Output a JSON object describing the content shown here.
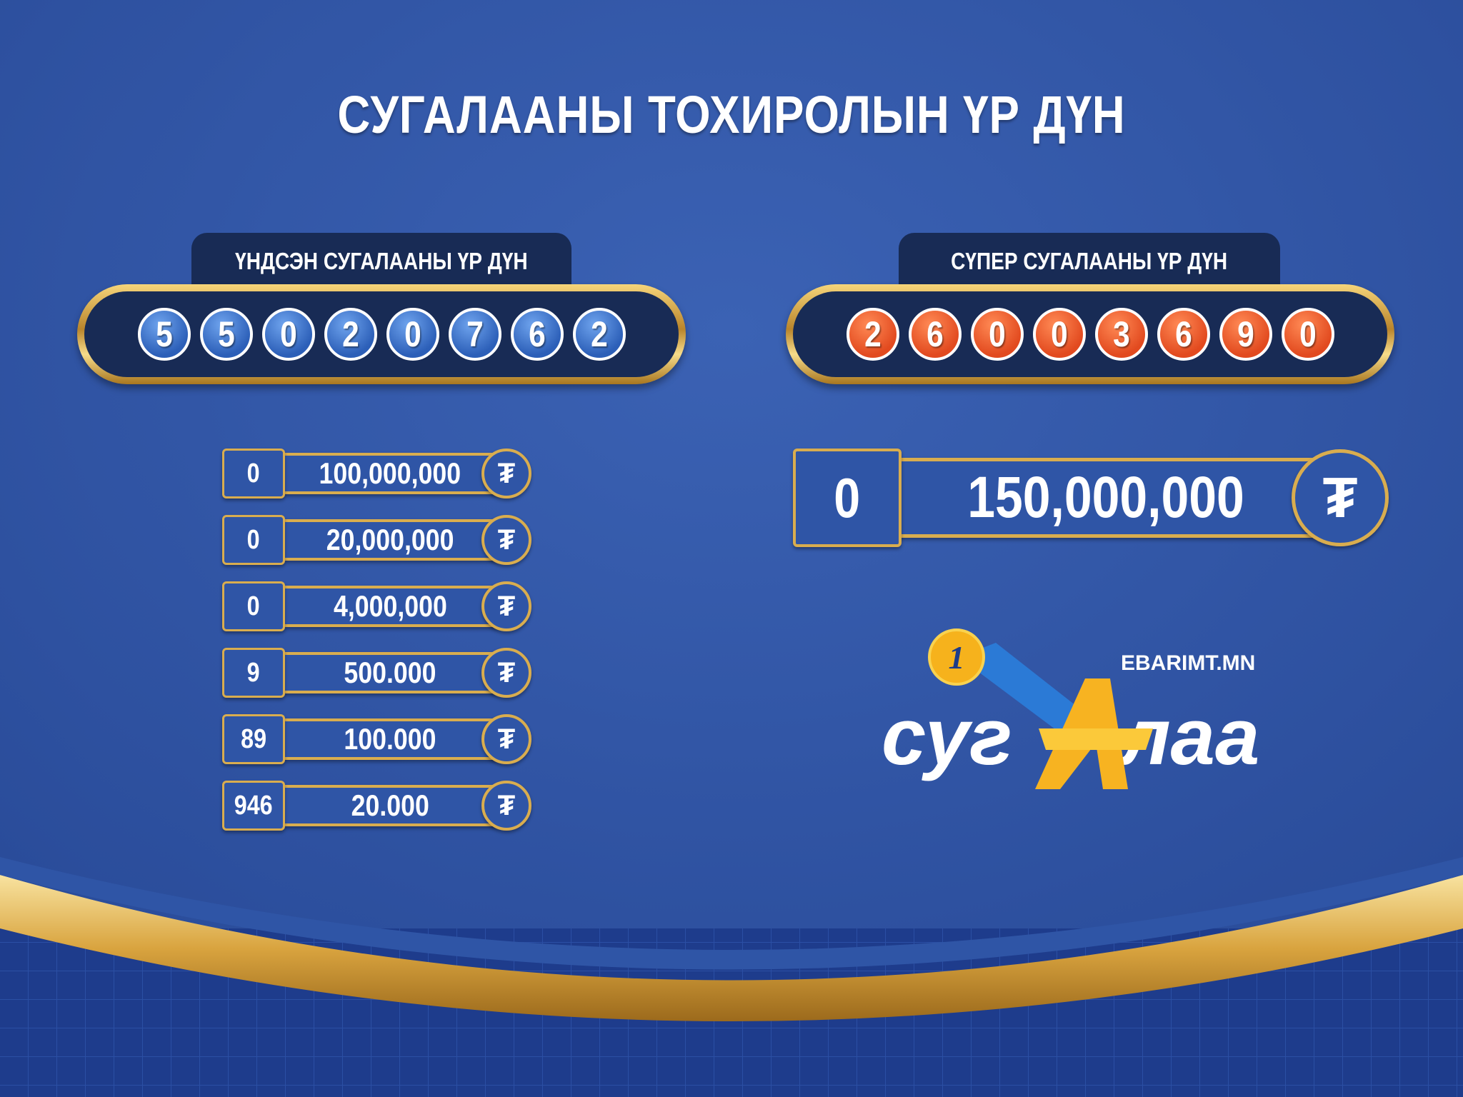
{
  "title": "СУГАЛААНЫ ТОХИРОЛЫН ҮР ДҮН",
  "main_draw": {
    "label": "ҮНДСЭН СУГАЛААНЫ ҮР ДҮН",
    "numbers": [
      "5",
      "5",
      "0",
      "2",
      "0",
      "7",
      "6",
      "2"
    ],
    "ball_color": "#2c5fb8",
    "prizes": [
      {
        "winners": "0",
        "amount": "100,000,000",
        "currency": "₮"
      },
      {
        "winners": "0",
        "amount": "20,000,000",
        "currency": "₮"
      },
      {
        "winners": "0",
        "amount": "4,000,000",
        "currency": "₮"
      },
      {
        "winners": "9",
        "amount": "500.000",
        "currency": "₮"
      },
      {
        "winners": "89",
        "amount": "100.000",
        "currency": "₮"
      },
      {
        "winners": "946",
        "amount": "20.000",
        "currency": "₮"
      }
    ]
  },
  "super_draw": {
    "label": "СҮПЕР СУГАЛААНЫ ҮР ДҮН",
    "numbers": [
      "2",
      "6",
      "0",
      "0",
      "3",
      "6",
      "9",
      "0"
    ],
    "ball_color": "#e24a1f",
    "prize": {
      "winners": "0",
      "amount": "150,000,000",
      "currency": "₮"
    }
  },
  "logo": {
    "text": "сугалаа",
    "site": "EBARIMT.MN",
    "badge": "1"
  },
  "colors": {
    "background": "#2f55a6",
    "gold": "#d9ad4f",
    "panel": "#182b55"
  }
}
